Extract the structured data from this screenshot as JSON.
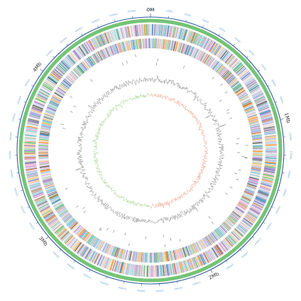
{
  "genome": {
    "length_mb": 4.7,
    "major_labels": [
      {
        "pos_mb": 0,
        "label": "0M"
      },
      {
        "pos_mb": 1,
        "label": "1Mb"
      },
      {
        "pos_mb": 2,
        "label": "2Mb"
      },
      {
        "pos_mb": 3,
        "label": "3Mb"
      },
      {
        "pos_mb": 4,
        "label": "4Mb"
      }
    ],
    "minor_tick_step_kb": 100,
    "minor_tick_suffix": "kb"
  },
  "colors": {
    "backbone": "#2f5d9e",
    "tick_label": "#6aa6d8",
    "contig_ring": "#74c476",
    "gc_content": "#666666",
    "gc_skew_positive": "#e8896a",
    "gc_skew_negative": "#8cc76a",
    "feature_palette": [
      "#7b68c6",
      "#a6a6d8",
      "#4a9a8a",
      "#9e9e9e",
      "#c7a0d9",
      "#6a51a3",
      "#3a3a3a",
      "#41b6c4",
      "#e377c2",
      "#8fbc8f",
      "#b15928",
      "#fdbf6f",
      "#6baed6",
      "#9970ab",
      "#d9d9d9",
      "#1f78b4",
      "#ff7f00",
      "#4daf4a"
    ]
  },
  "tracks": [
    {
      "name": "backbone-ring"
    },
    {
      "name": "contig-ring"
    },
    {
      "name": "forward-strand-cds"
    },
    {
      "name": "reverse-strand-cds"
    },
    {
      "name": "rna-features"
    },
    {
      "name": "gc-content"
    },
    {
      "name": "gc-skew"
    }
  ]
}
